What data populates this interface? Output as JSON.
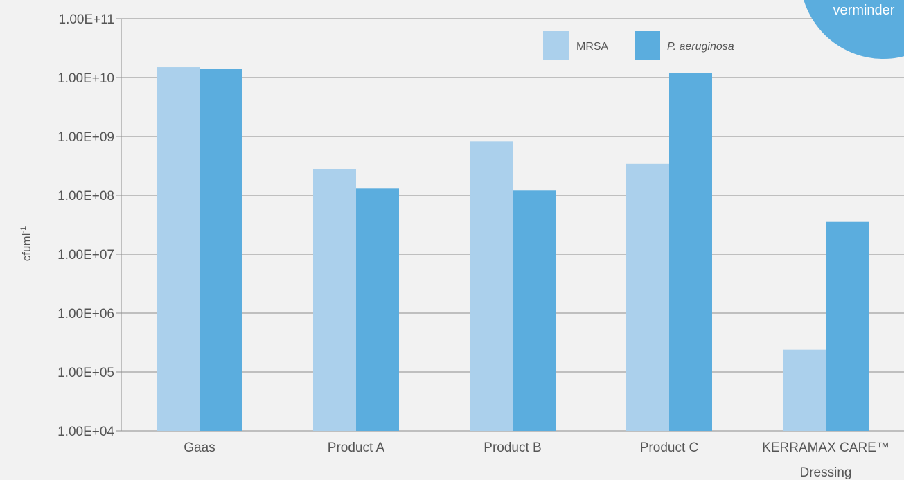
{
  "chart_data": {
    "type": "bar",
    "scale": "log",
    "ylim": [
      10000,
      100000000000
    ],
    "yticks": [
      "1.00E+11",
      "1.00E+10",
      "1.00E+09",
      "1.00E+08",
      "1.00E+07",
      "1.00E+06",
      "1.00E+05",
      "1.00E+04"
    ],
    "ytick_values": [
      100000000000,
      10000000000,
      1000000000,
      100000000,
      10000000,
      1000000,
      100000,
      10000
    ],
    "ylabel": "cfuml",
    "ylabel_sup": "-1",
    "categories": [
      {
        "line1": "Gaas",
        "line2": ""
      },
      {
        "line1": "Product A",
        "line2": ""
      },
      {
        "line1": "Product B",
        "line2": ""
      },
      {
        "line1": "Product C",
        "line2": ""
      },
      {
        "line1": "KERRAMAX CARE™",
        "line2": "Dressing"
      }
    ],
    "series": [
      {
        "name": "MRSA",
        "color": "#abd0ec",
        "values": [
          15000000000,
          280000000,
          820000000,
          340000000,
          240000
        ]
      },
      {
        "name": "P. aeruginosa",
        "color": "#5badde",
        "values": [
          14000000000,
          130000000,
          120000000,
          12000000000,
          36000000
        ]
      }
    ],
    "grid": true,
    "legend_position": "top-right"
  },
  "badge": {
    "text": "verminder",
    "color": "#5badde"
  }
}
